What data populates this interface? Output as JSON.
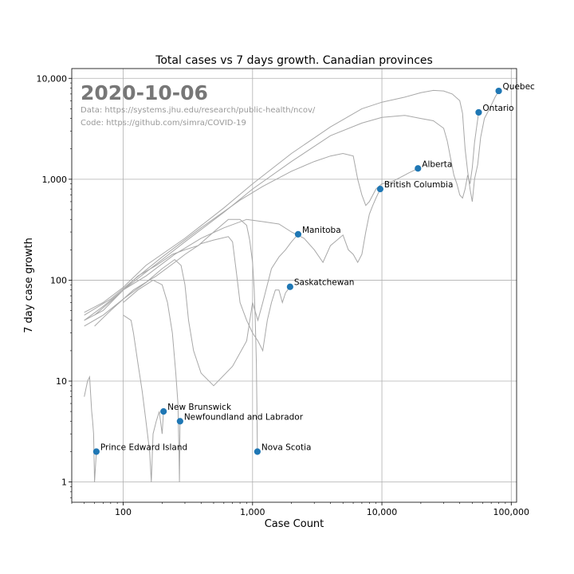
{
  "chart_data": {
    "type": "line",
    "title": "Total cases vs 7 days growth. Canadian provinces",
    "xlabel": "Case Count",
    "ylabel": "7 day case growth",
    "x_scale": "log",
    "y_scale": "log",
    "xlim": [
      40,
      110000
    ],
    "ylim": [
      0.63,
      12500
    ],
    "grid": true,
    "x_ticks": [
      {
        "value": 100,
        "label": "100"
      },
      {
        "value": 1000,
        "label": "1,000"
      },
      {
        "value": 10000,
        "label": "10,000"
      },
      {
        "value": 100000,
        "label": "100,000"
      }
    ],
    "y_ticks": [
      {
        "value": 1,
        "label": "1"
      },
      {
        "value": 10,
        "label": "10"
      },
      {
        "value": 100,
        "label": "100"
      },
      {
        "value": 1000,
        "label": "1,000"
      },
      {
        "value": 10000,
        "label": "10,000"
      }
    ],
    "annotations": {
      "date": "2020-10-06",
      "data_source": "Data: https://systems.jhu.edu/research/public-health/ncov/",
      "code_source": "Code: https://github.com/simra/COVID-19"
    },
    "series": [
      {
        "name": "Quebec",
        "latest": [
          80000,
          7500
        ],
        "trace": [
          [
            50,
            48
          ],
          [
            70,
            60
          ],
          [
            100,
            85
          ],
          [
            150,
            140
          ],
          [
            300,
            260
          ],
          [
            600,
            520
          ],
          [
            1000,
            900
          ],
          [
            2000,
            1800
          ],
          [
            4000,
            3300
          ],
          [
            7000,
            5000
          ],
          [
            10000,
            5800
          ],
          [
            15000,
            6500
          ],
          [
            20000,
            7200
          ],
          [
            25000,
            7600
          ],
          [
            30000,
            7500
          ],
          [
            35000,
            7000
          ],
          [
            40000,
            6000
          ],
          [
            42000,
            4500
          ],
          [
            44000,
            2000
          ],
          [
            46000,
            1200
          ],
          [
            48000,
            800
          ],
          [
            50000,
            600
          ],
          [
            52000,
            1000
          ],
          [
            55000,
            1400
          ],
          [
            58000,
            2600
          ],
          [
            62000,
            4000
          ],
          [
            68000,
            5000
          ],
          [
            75000,
            6500
          ],
          [
            80000,
            7500
          ]
        ]
      },
      {
        "name": "Ontario",
        "latest": [
          56000,
          4600
        ],
        "trace": [
          [
            50,
            40
          ],
          [
            70,
            55
          ],
          [
            100,
            80
          ],
          [
            150,
            120
          ],
          [
            300,
            240
          ],
          [
            600,
            470
          ],
          [
            1000,
            800
          ],
          [
            2000,
            1500
          ],
          [
            4000,
            2700
          ],
          [
            7000,
            3600
          ],
          [
            10000,
            4100
          ],
          [
            15000,
            4300
          ],
          [
            20000,
            4000
          ],
          [
            25000,
            3800
          ],
          [
            30000,
            3200
          ],
          [
            32000,
            2400
          ],
          [
            34000,
            1600
          ],
          [
            36000,
            1100
          ],
          [
            38000,
            900
          ],
          [
            40000,
            700
          ],
          [
            42000,
            650
          ],
          [
            44000,
            800
          ],
          [
            46000,
            1100
          ],
          [
            48000,
            900
          ],
          [
            50000,
            1300
          ],
          [
            52000,
            2300
          ],
          [
            54000,
            3300
          ],
          [
            56000,
            4600
          ]
        ]
      },
      {
        "name": "Alberta",
        "latest": [
          19000,
          1280
        ],
        "trace": [
          [
            50,
            45
          ],
          [
            80,
            65
          ],
          [
            120,
            100
          ],
          [
            200,
            170
          ],
          [
            400,
            330
          ],
          [
            800,
            620
          ],
          [
            1200,
            850
          ],
          [
            2000,
            1200
          ],
          [
            3000,
            1500
          ],
          [
            4000,
            1700
          ],
          [
            5000,
            1800
          ],
          [
            6000,
            1700
          ],
          [
            6500,
            1000
          ],
          [
            7000,
            700
          ],
          [
            7500,
            550
          ],
          [
            8000,
            600
          ],
          [
            9000,
            800
          ],
          [
            10000,
            900
          ],
          [
            12000,
            950
          ],
          [
            14000,
            1050
          ],
          [
            16000,
            1150
          ],
          [
            19000,
            1280
          ]
        ]
      },
      {
        "name": "British Columbia",
        "latest": [
          9700,
          800
        ],
        "trace": [
          [
            50,
            40
          ],
          [
            70,
            50
          ],
          [
            100,
            80
          ],
          [
            150,
            110
          ],
          [
            250,
            180
          ],
          [
            400,
            260
          ],
          [
            600,
            330
          ],
          [
            900,
            400
          ],
          [
            1200,
            380
          ],
          [
            1600,
            360
          ],
          [
            2000,
            300
          ],
          [
            2500,
            260
          ],
          [
            3000,
            200
          ],
          [
            3500,
            150
          ],
          [
            4000,
            220
          ],
          [
            4500,
            250
          ],
          [
            5000,
            280
          ],
          [
            5500,
            200
          ],
          [
            6000,
            180
          ],
          [
            6500,
            150
          ],
          [
            7000,
            180
          ],
          [
            7500,
            300
          ],
          [
            8000,
            450
          ],
          [
            8500,
            550
          ],
          [
            9000,
            650
          ],
          [
            9700,
            800
          ]
        ]
      },
      {
        "name": "Manitoba",
        "latest": [
          2250,
          285
        ],
        "trace": [
          [
            50,
            35
          ],
          [
            70,
            45
          ],
          [
            100,
            65
          ],
          [
            150,
            95
          ],
          [
            200,
            130
          ],
          [
            250,
            160
          ],
          [
            280,
            140
          ],
          [
            300,
            90
          ],
          [
            320,
            40
          ],
          [
            350,
            20
          ],
          [
            400,
            12
          ],
          [
            500,
            9
          ],
          [
            700,
            14
          ],
          [
            900,
            25
          ],
          [
            1000,
            60
          ],
          [
            1100,
            40
          ],
          [
            1200,
            60
          ],
          [
            1400,
            130
          ],
          [
            1600,
            170
          ],
          [
            1800,
            200
          ],
          [
            2000,
            240
          ],
          [
            2250,
            285
          ]
        ]
      },
      {
        "name": "Saskatchewan",
        "latest": [
          1950,
          86
        ],
        "trace": [
          [
            60,
            35
          ],
          [
            80,
            50
          ],
          [
            120,
            80
          ],
          [
            180,
            110
          ],
          [
            250,
            150
          ],
          [
            300,
            180
          ],
          [
            400,
            230
          ],
          [
            500,
            250
          ],
          [
            650,
            270
          ],
          [
            700,
            240
          ],
          [
            750,
            120
          ],
          [
            800,
            60
          ],
          [
            900,
            40
          ],
          [
            1000,
            30
          ],
          [
            1100,
            25
          ],
          [
            1200,
            20
          ],
          [
            1300,
            40
          ],
          [
            1400,
            60
          ],
          [
            1500,
            80
          ],
          [
            1600,
            80
          ],
          [
            1700,
            60
          ],
          [
            1800,
            75
          ],
          [
            1950,
            86
          ]
        ]
      },
      {
        "name": "New Brunswick",
        "latest": [
          205,
          5
        ],
        "trace": [
          [
            100,
            45
          ],
          [
            115,
            40
          ],
          [
            120,
            30
          ],
          [
            130,
            15
          ],
          [
            140,
            8
          ],
          [
            150,
            4
          ],
          [
            160,
            2
          ],
          [
            165,
            1
          ],
          [
            170,
            3
          ],
          [
            180,
            4
          ],
          [
            190,
            5
          ],
          [
            200,
            3
          ],
          [
            205,
            5
          ]
        ]
      },
      {
        "name": "Newfoundland and Labrador",
        "latest": [
          275,
          4
        ],
        "trace": [
          [
            100,
            60
          ],
          [
            130,
            80
          ],
          [
            170,
            100
          ],
          [
            200,
            90
          ],
          [
            220,
            60
          ],
          [
            240,
            30
          ],
          [
            255,
            12
          ],
          [
            265,
            6
          ],
          [
            270,
            2
          ],
          [
            272,
            1
          ],
          [
            275,
            4
          ]
        ]
      },
      {
        "name": "Prince Edward Island",
        "latest": [
          62,
          2
        ],
        "trace": [
          [
            50,
            7
          ],
          [
            53,
            10
          ],
          [
            55,
            11
          ],
          [
            57,
            5
          ],
          [
            58,
            4
          ],
          [
            59,
            3
          ],
          [
            60,
            1
          ],
          [
            62,
            2
          ]
        ]
      },
      {
        "name": "Nova Scotia",
        "latest": [
          1090,
          2
        ],
        "trace": [
          [
            60,
            45
          ],
          [
            90,
            70
          ],
          [
            130,
            110
          ],
          [
            180,
            140
          ],
          [
            240,
            180
          ],
          [
            300,
            200
          ],
          [
            380,
            220
          ],
          [
            500,
            300
          ],
          [
            650,
            400
          ],
          [
            800,
            400
          ],
          [
            900,
            350
          ],
          [
            950,
            250
          ],
          [
            1000,
            150
          ],
          [
            1030,
            80
          ],
          [
            1050,
            40
          ],
          [
            1070,
            15
          ],
          [
            1080,
            6
          ],
          [
            1085,
            3
          ],
          [
            1090,
            2
          ]
        ]
      }
    ]
  }
}
